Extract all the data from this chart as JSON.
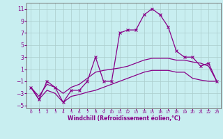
{
  "xlabel": "Windchill (Refroidissement éolien,°C)",
  "background_color": "#c8eef0",
  "line_color": "#880088",
  "grid_color": "#aacccc",
  "xlim": [
    -0.5,
    23.5
  ],
  "ylim": [
    -5.5,
    12.0
  ],
  "xticks": [
    0,
    1,
    2,
    3,
    4,
    5,
    6,
    7,
    8,
    9,
    10,
    11,
    12,
    13,
    14,
    15,
    16,
    17,
    18,
    19,
    20,
    21,
    22,
    23
  ],
  "yticks": [
    -5,
    -3,
    -1,
    1,
    3,
    5,
    7,
    9,
    11
  ],
  "hours": [
    0,
    1,
    2,
    3,
    4,
    5,
    6,
    7,
    8,
    9,
    10,
    11,
    12,
    13,
    14,
    15,
    16,
    17,
    18,
    19,
    20,
    21,
    22,
    23
  ],
  "temp": [
    -2,
    -4,
    -1,
    -2,
    -4.5,
    -2.5,
    -2.5,
    -1,
    3,
    -1,
    -1,
    7,
    7.5,
    7.5,
    10,
    11,
    10,
    8,
    4,
    3,
    3,
    1.5,
    2,
    -1
  ],
  "wc_upper": [
    -2,
    -3.5,
    -1.5,
    -2,
    -3.0,
    -2.0,
    -1.5,
    -0.5,
    0.5,
    0.8,
    1.0,
    1.2,
    1.5,
    2.0,
    2.5,
    2.8,
    2.8,
    2.8,
    2.5,
    2.5,
    2.2,
    2.0,
    1.5,
    -1.0
  ],
  "wc_lower": [
    -2,
    -4,
    -2.5,
    -3.0,
    -4.5,
    -3.5,
    -3.2,
    -2.8,
    -2.5,
    -2.0,
    -1.5,
    -1.0,
    -0.5,
    0.0,
    0.5,
    0.8,
    0.8,
    0.8,
    0.5,
    0.5,
    -0.5,
    -0.8,
    -1.0,
    -1.0
  ]
}
